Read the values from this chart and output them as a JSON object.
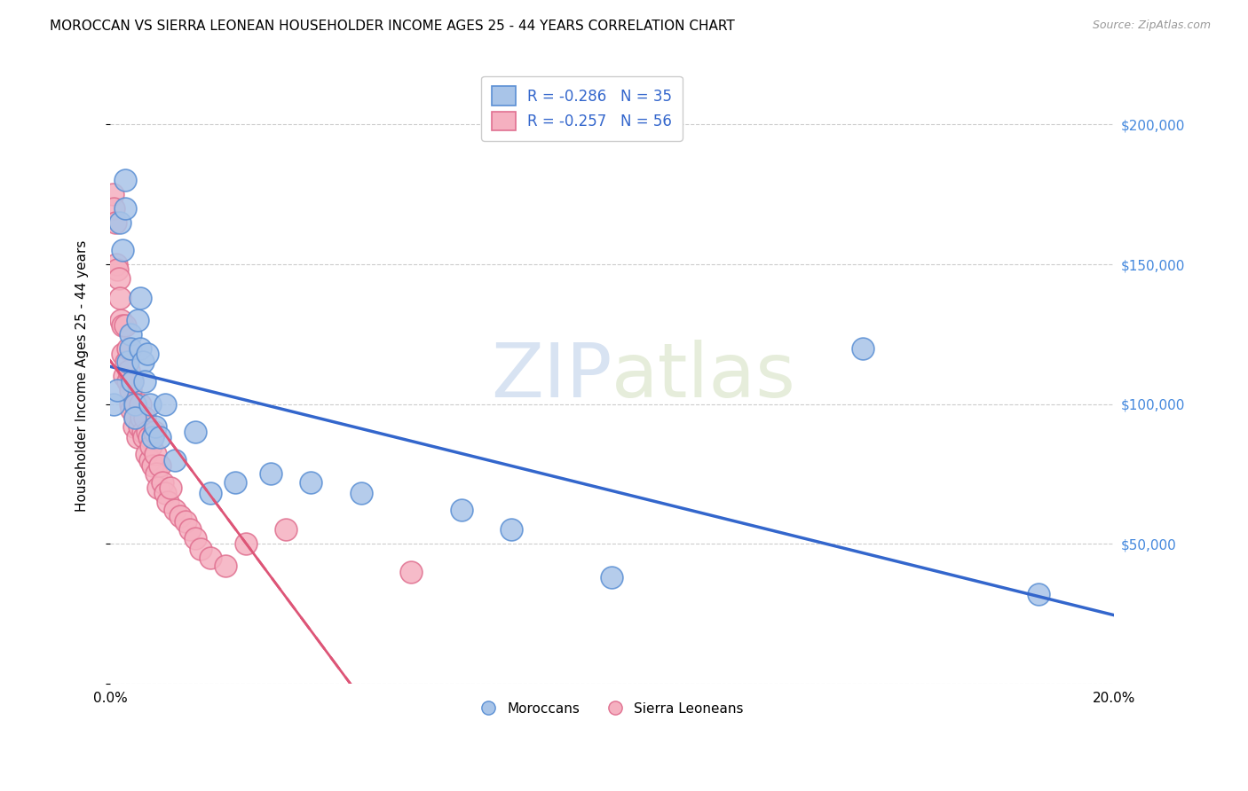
{
  "title": "MOROCCAN VS SIERRA LEONEAN HOUSEHOLDER INCOME AGES 25 - 44 YEARS CORRELATION CHART",
  "source": "Source: ZipAtlas.com",
  "ylabel": "Householder Income Ages 25 - 44 years",
  "xmin": 0.0,
  "xmax": 0.2,
  "ymin": 0,
  "ymax": 220000,
  "yticks": [
    0,
    50000,
    100000,
    150000,
    200000
  ],
  "ytick_labels": [
    "",
    "$50,000",
    "$100,000",
    "$150,000",
    "$200,000"
  ],
  "xticks": [
    0.0,
    0.05,
    0.1,
    0.15,
    0.2
  ],
  "xtick_labels": [
    "0.0%",
    "",
    "",
    "",
    "20.0%"
  ],
  "watermark_zip": "ZIP",
  "watermark_atlas": "atlas",
  "legend_r1": "R = -0.286",
  "legend_n1": "N = 35",
  "legend_r2": "R = -0.257",
  "legend_n2": "N = 56",
  "moroccan_color": "#a8c4e8",
  "sierra_color": "#f5b0c0",
  "moroccan_edge": "#5a8fd4",
  "sierra_edge": "#e07090",
  "trend_moroccan_color": "#3366cc",
  "trend_sierra_color": "#dd5577",
  "background_color": "#ffffff",
  "grid_color": "#cccccc",
  "moroccan_label": "Moroccans",
  "sierra_label": "Sierra Leoneans",
  "moroccan_x": [
    0.0008,
    0.0015,
    0.002,
    0.0025,
    0.003,
    0.003,
    0.0035,
    0.004,
    0.004,
    0.0045,
    0.005,
    0.005,
    0.0055,
    0.006,
    0.006,
    0.0065,
    0.007,
    0.0075,
    0.008,
    0.0085,
    0.009,
    0.01,
    0.011,
    0.013,
    0.017,
    0.02,
    0.025,
    0.032,
    0.04,
    0.05,
    0.07,
    0.08,
    0.1,
    0.15,
    0.185
  ],
  "moroccan_y": [
    100000,
    105000,
    165000,
    155000,
    180000,
    170000,
    115000,
    125000,
    120000,
    108000,
    100000,
    95000,
    130000,
    138000,
    120000,
    115000,
    108000,
    118000,
    100000,
    88000,
    92000,
    88000,
    100000,
    80000,
    90000,
    68000,
    72000,
    75000,
    72000,
    68000,
    62000,
    55000,
    38000,
    120000,
    32000
  ],
  "sierra_x": [
    0.0005,
    0.0008,
    0.001,
    0.0012,
    0.0015,
    0.0018,
    0.002,
    0.0022,
    0.0025,
    0.0025,
    0.0028,
    0.003,
    0.0032,
    0.0035,
    0.0035,
    0.0038,
    0.004,
    0.004,
    0.0042,
    0.0045,
    0.0048,
    0.005,
    0.0052,
    0.0055,
    0.0058,
    0.006,
    0.0062,
    0.0065,
    0.0068,
    0.007,
    0.0072,
    0.0075,
    0.0078,
    0.008,
    0.0082,
    0.0085,
    0.0088,
    0.009,
    0.0092,
    0.0095,
    0.01,
    0.0105,
    0.011,
    0.0115,
    0.012,
    0.013,
    0.014,
    0.015,
    0.016,
    0.017,
    0.018,
    0.02,
    0.023,
    0.027,
    0.035,
    0.06
  ],
  "sierra_y": [
    175000,
    170000,
    165000,
    150000,
    148000,
    145000,
    138000,
    130000,
    128000,
    118000,
    110000,
    128000,
    115000,
    108000,
    120000,
    112000,
    100000,
    105000,
    98000,
    108000,
    92000,
    95000,
    100000,
    88000,
    92000,
    100000,
    95000,
    90000,
    88000,
    95000,
    82000,
    90000,
    88000,
    80000,
    85000,
    78000,
    90000,
    82000,
    75000,
    70000,
    78000,
    72000,
    68000,
    65000,
    70000,
    62000,
    60000,
    58000,
    55000,
    52000,
    48000,
    45000,
    42000,
    50000,
    55000,
    40000
  ]
}
